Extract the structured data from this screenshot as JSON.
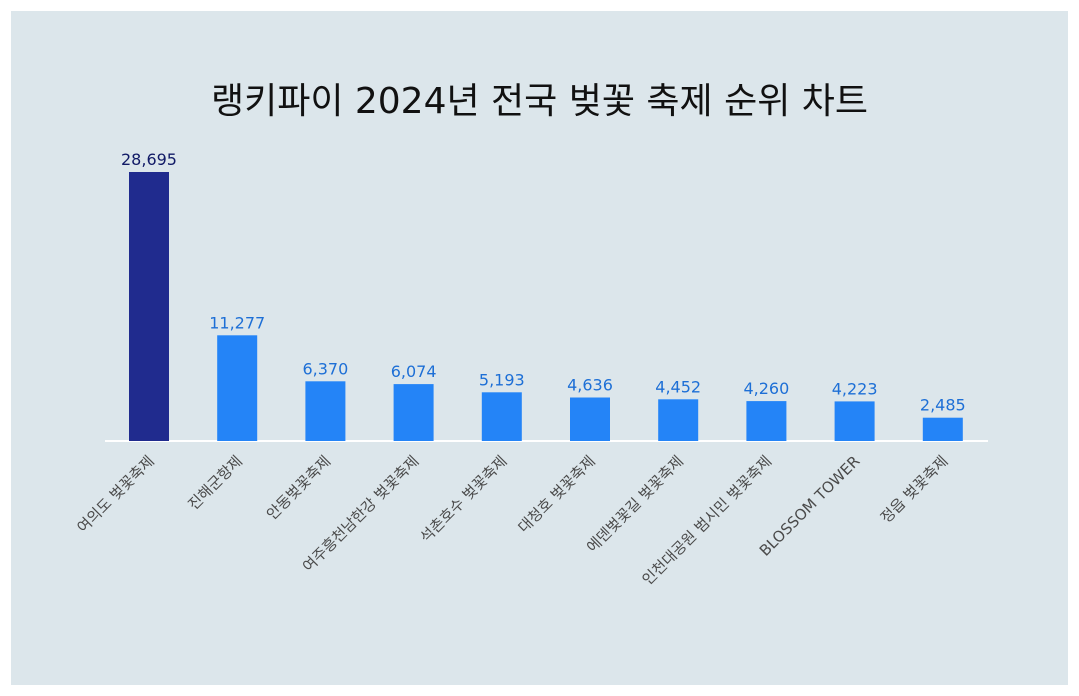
{
  "title": "랭키파이 2024년 전국 벚꽃 축제 순위 차트",
  "colors": {
    "highlight_bar": "#202b8e",
    "bar": "#2484f7",
    "highlight_label": "#111a66",
    "label": "#1d6fd6",
    "background": "#dce6eb",
    "baseline": "#ffffff"
  },
  "chart_data": {
    "type": "bar",
    "title": "랭키파이 2024년 전국 벚꽃 축제 순위 차트",
    "categories": [
      "여의도 벚꽃축제",
      "진해군항제",
      "안동벚꽃축제",
      "여주흥천남한강 벚꽃축제",
      "석촌호수 벚꽃축제",
      "대청호 벚꽃축제",
      "에덴벚꽃길 벚꽃축제",
      "인천대공원 범시민 벚꽃축제",
      "BLOSSOM TOWER",
      "정읍 벚꽃축제"
    ],
    "values": [
      28695,
      11277,
      6370,
      6074,
      5193,
      4636,
      4452,
      4260,
      4223,
      2485
    ],
    "value_labels": [
      "28,695",
      "11,277",
      "6,370",
      "6,074",
      "5,193",
      "4,636",
      "4,452",
      "4,260",
      "4,223",
      "2,485"
    ],
    "highlight_index": 0,
    "ylim": [
      0,
      28695
    ],
    "grid": false,
    "legend": "none"
  }
}
